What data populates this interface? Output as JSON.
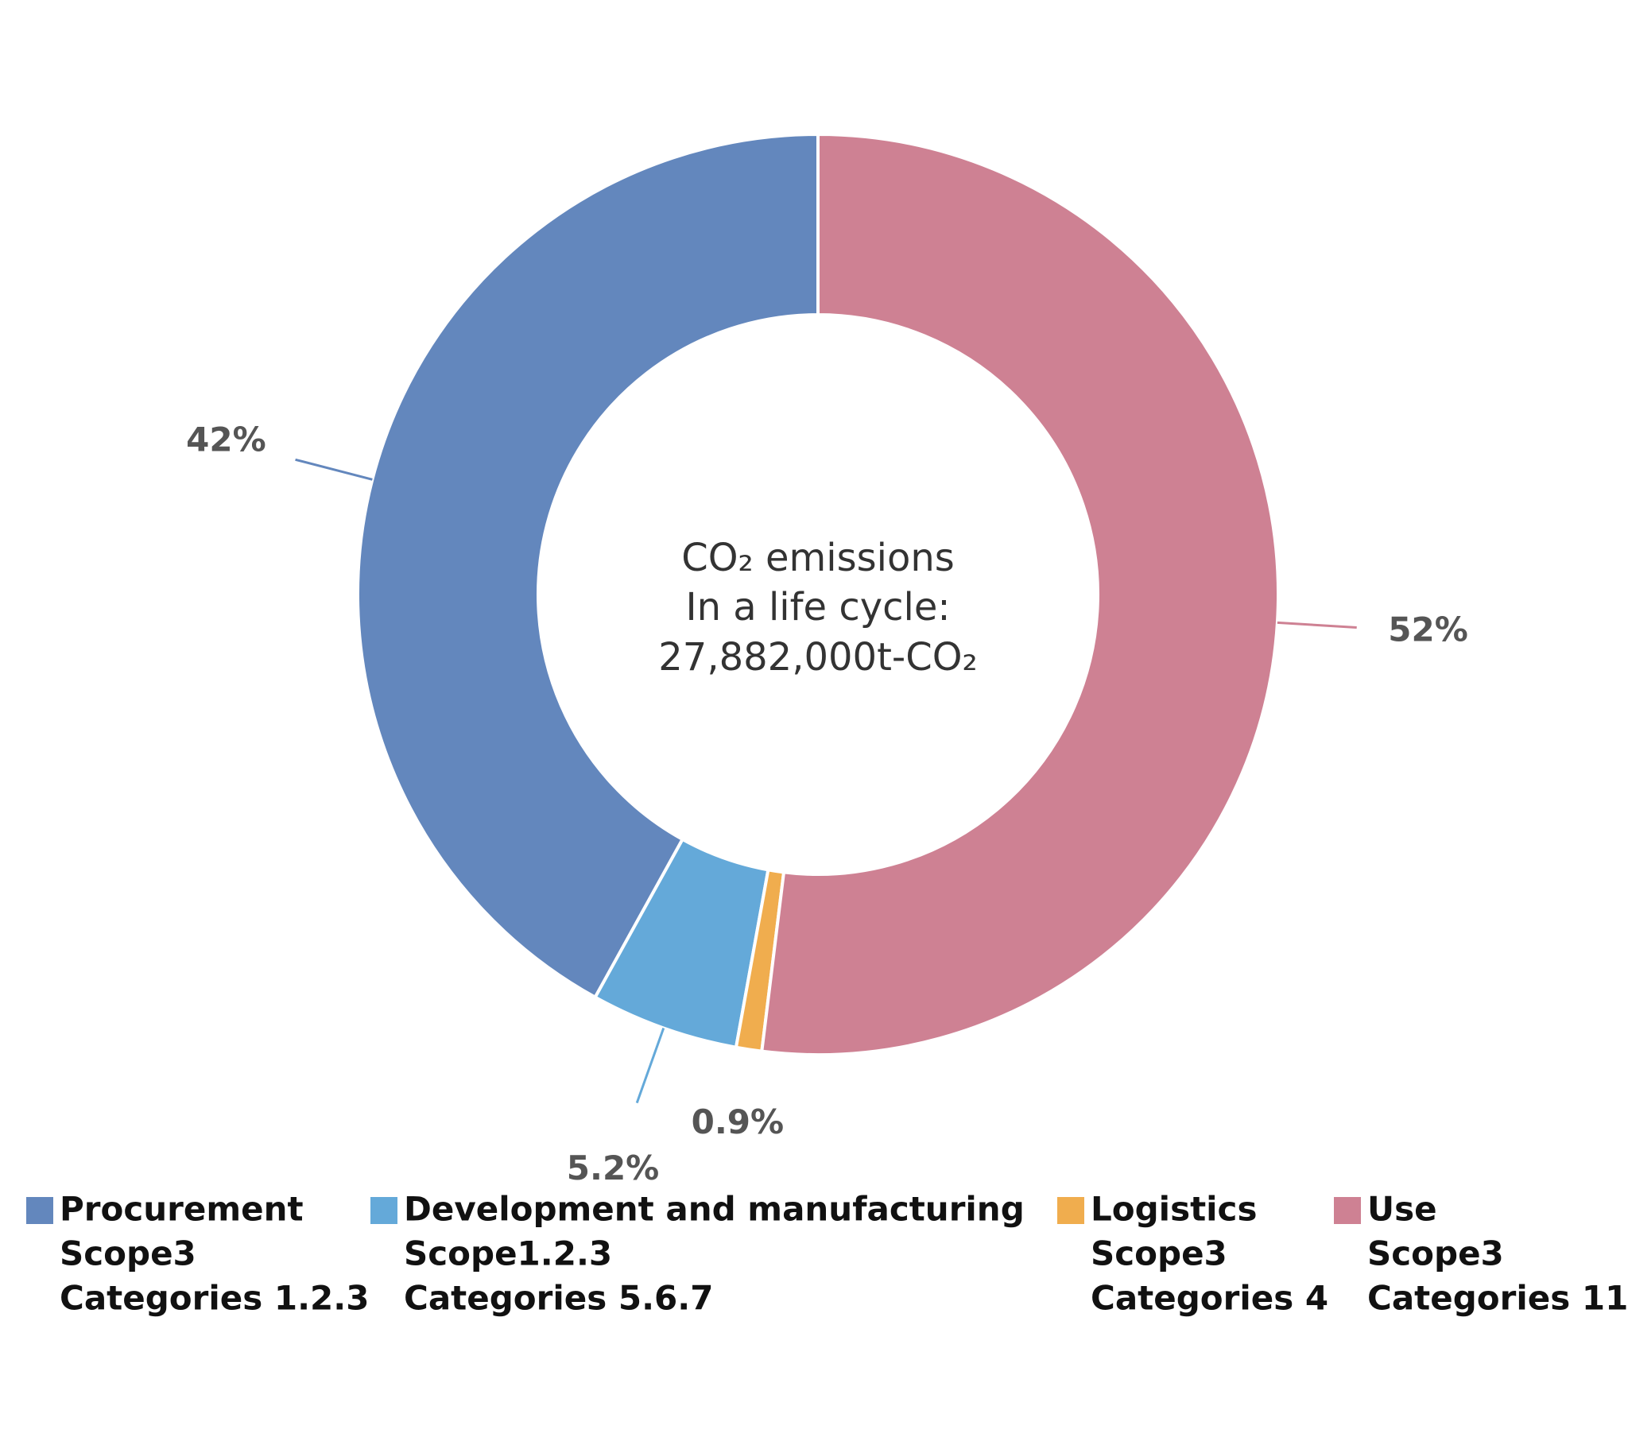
{
  "chart_data": {
    "type": "donut",
    "center_text": [
      "CO₂ emissions",
      "In a life cycle:",
      "27,882,000t-CO₂"
    ],
    "categories": [
      "Procurement",
      "Development and manufacturing",
      "Logistics",
      "Use"
    ],
    "category_details": [
      [
        "Scope3",
        "Categories 1.2.3"
      ],
      [
        "Scope1.2.3",
        "Categories 5.6.7"
      ],
      [
        "Scope3",
        "Categories 4"
      ],
      [
        "Scope3",
        "Categories 11"
      ]
    ],
    "values": [
      42,
      5.2,
      0.9,
      52
    ],
    "value_labels": [
      "42%",
      "5.2%",
      "0.9%",
      "52%"
    ],
    "colors": [
      "#6387bd",
      "#64a9d9",
      "#f0ad4e",
      "#ce8193"
    ],
    "legend": "bottom"
  }
}
